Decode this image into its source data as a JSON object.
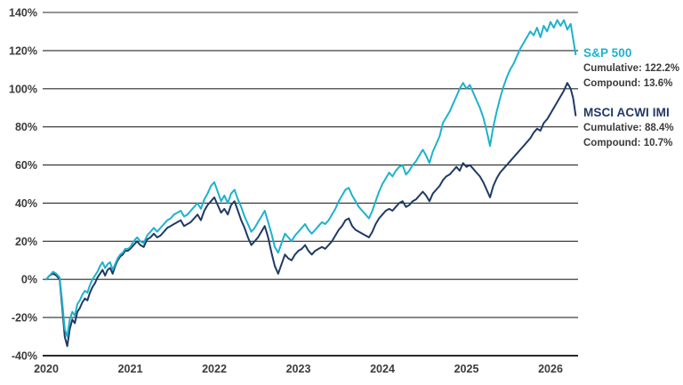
{
  "chart": {
    "background_color": "#ffffff",
    "grid_color": "#2a2a2a",
    "axis_text_color": "#3b3b3b"
  },
  "chart_data": {
    "type": "line",
    "title": "",
    "xlabel": "",
    "ylabel": "",
    "y_unit": "%",
    "grid": true,
    "legend_position": "right",
    "ylim": [
      -40,
      140
    ],
    "y_ticks": [
      140,
      120,
      100,
      80,
      60,
      40,
      20,
      0,
      -20,
      -40
    ],
    "x_ticks": [
      2020,
      2021,
      2022,
      2023,
      2024,
      2025,
      2026
    ],
    "x": [
      2020.0,
      2020.04,
      2020.08,
      2020.12,
      2020.16,
      2020.19,
      2020.22,
      2020.25,
      2020.28,
      2020.31,
      2020.34,
      2020.37,
      2020.4,
      2020.43,
      2020.46,
      2020.49,
      2020.52,
      2020.55,
      2020.58,
      2020.61,
      2020.64,
      2020.67,
      2020.7,
      2020.73,
      2020.76,
      2020.79,
      2020.82,
      2020.85,
      2020.88,
      2020.91,
      2020.94,
      2020.97,
      2021.0,
      2021.04,
      2021.08,
      2021.12,
      2021.16,
      2021.2,
      2021.24,
      2021.28,
      2021.32,
      2021.36,
      2021.4,
      2021.44,
      2021.48,
      2021.52,
      2021.56,
      2021.6,
      2021.64,
      2021.68,
      2021.72,
      2021.76,
      2021.8,
      2021.84,
      2021.88,
      2021.92,
      2021.96,
      2022.0,
      2022.04,
      2022.08,
      2022.12,
      2022.16,
      2022.2,
      2022.24,
      2022.28,
      2022.32,
      2022.36,
      2022.4,
      2022.44,
      2022.48,
      2022.52,
      2022.56,
      2022.6,
      2022.64,
      2022.68,
      2022.72,
      2022.76,
      2022.8,
      2022.84,
      2022.88,
      2022.92,
      2022.96,
      2023.0,
      2023.04,
      2023.08,
      2023.12,
      2023.16,
      2023.2,
      2023.24,
      2023.28,
      2023.32,
      2023.36,
      2023.4,
      2023.44,
      2023.48,
      2023.52,
      2023.56,
      2023.6,
      2023.64,
      2023.68,
      2023.72,
      2023.76,
      2023.8,
      2023.84,
      2023.88,
      2023.92,
      2023.96,
      2024.0,
      2024.04,
      2024.08,
      2024.12,
      2024.16,
      2024.2,
      2024.24,
      2024.28,
      2024.32,
      2024.36,
      2024.4,
      2024.44,
      2024.48,
      2024.52,
      2024.56,
      2024.6,
      2024.64,
      2024.68,
      2024.72,
      2024.76,
      2024.8,
      2024.84,
      2024.88,
      2024.92,
      2024.96,
      2025.0,
      2025.04,
      2025.08,
      2025.12,
      2025.16,
      2025.2,
      2025.24,
      2025.28,
      2025.32,
      2025.36,
      2025.4,
      2025.44,
      2025.48,
      2025.52,
      2025.56,
      2025.6,
      2025.64,
      2025.68,
      2025.72,
      2025.76,
      2025.8,
      2025.84,
      2025.88,
      2025.92,
      2025.96,
      2026.0,
      2026.04,
      2026.08,
      2026.12,
      2026.16,
      2026.2,
      2026.24,
      2026.27,
      2026.3
    ],
    "series": [
      {
        "name": "S&P 500",
        "color": "#1DB2CB",
        "cumulative": "Cumulative: 122.2%",
        "compound": "Compound: 13.6%",
        "values": [
          0,
          2,
          4,
          3,
          1,
          -12,
          -26,
          -30,
          -21,
          -17,
          -19,
          -13,
          -11,
          -8,
          -6,
          -7,
          -3,
          0,
          2,
          4,
          7,
          9,
          6,
          8,
          9,
          5,
          8,
          11,
          13,
          14,
          16,
          16,
          17,
          20,
          22,
          20,
          19,
          23,
          25,
          27,
          25,
          27,
          29,
          31,
          32,
          34,
          35,
          36,
          33,
          34,
          36,
          38,
          40,
          37,
          42,
          45,
          49,
          51,
          46,
          41,
          44,
          40,
          45,
          47,
          42,
          38,
          33,
          29,
          25,
          27,
          30,
          33,
          36,
          30,
          24,
          17,
          14,
          19,
          24,
          22,
          20,
          23,
          25,
          27,
          29,
          26,
          24,
          26,
          28,
          30,
          29,
          31,
          34,
          37,
          41,
          44,
          47,
          48,
          44,
          41,
          38,
          36,
          34,
          32,
          36,
          41,
          46,
          50,
          53,
          56,
          54,
          57,
          59,
          60,
          55,
          57,
          60,
          62,
          65,
          68,
          65,
          61,
          67,
          71,
          75,
          82,
          85,
          88,
          92,
          96,
          100,
          103,
          100,
          102,
          98,
          94,
          90,
          85,
          78,
          70,
          80,
          88,
          95,
          101,
          106,
          110,
          113,
          117,
          121,
          124,
          127,
          130,
          128,
          132,
          127,
          133,
          130,
          135,
          132,
          136,
          133,
          136,
          131,
          134,
          126,
          118
        ]
      },
      {
        "name": "MSCI ACWI IMI",
        "color": "#1F3A63",
        "cumulative": "Cumulative: 88.4%",
        "compound": "Compound: 10.7%",
        "values": [
          0,
          2,
          3,
          2,
          0,
          -15,
          -30,
          -35,
          -26,
          -21,
          -23,
          -17,
          -15,
          -12,
          -10,
          -11,
          -7,
          -4,
          -2,
          1,
          3,
          5,
          2,
          5,
          6,
          3,
          7,
          10,
          12,
          13,
          15,
          15,
          16,
          18,
          20,
          18,
          17,
          21,
          22,
          24,
          22,
          23,
          25,
          27,
          28,
          29,
          30,
          31,
          28,
          29,
          30,
          32,
          34,
          31,
          36,
          39,
          41,
          43,
          39,
          35,
          37,
          34,
          39,
          41,
          36,
          31,
          27,
          22,
          18,
          20,
          22,
          25,
          28,
          22,
          14,
          7,
          3,
          8,
          13,
          11,
          10,
          13,
          15,
          16,
          18,
          15,
          13,
          15,
          16,
          17,
          16,
          18,
          20,
          23,
          26,
          28,
          31,
          32,
          28,
          26,
          25,
          24,
          23,
          22,
          25,
          29,
          32,
          34,
          36,
          37,
          36,
          38,
          40,
          41,
          38,
          39,
          41,
          42,
          44,
          46,
          44,
          41,
          45,
          47,
          49,
          52,
          54,
          55,
          57,
          59,
          57,
          61,
          59,
          60,
          58,
          56,
          54,
          51,
          47,
          43,
          49,
          53,
          56,
          58,
          60,
          62,
          64,
          66,
          68,
          70,
          72,
          74,
          77,
          79,
          78,
          82,
          84,
          87,
          90,
          93,
          96,
          99,
          103,
          100,
          95,
          86
        ]
      }
    ]
  }
}
